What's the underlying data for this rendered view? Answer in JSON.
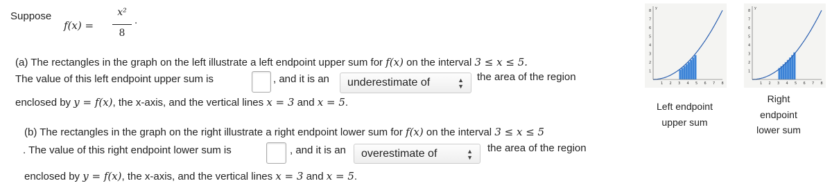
{
  "intro": {
    "label": "Suppose",
    "lhs": "f(x) =",
    "numerator": "x²",
    "denominator": "8",
    "end": "."
  },
  "part_a": {
    "line1": [
      "(a) The rectangles in the graph on the left illustrate a left endpoint upper sum for ",
      "f(x)",
      " on the interval ",
      "3 ≤ x ≤ 5."
    ],
    "line2_start": "The value of this left endpoint upper sum is",
    "line2_mid": ", and it is an",
    "dropdown": "underestimate of",
    "line2_end": "the area of the region",
    "line3": [
      "enclosed by ",
      "y = f(x)",
      ", the x-axis, and the vertical lines ",
      "x = 3",
      " and ",
      "x = 5",
      "."
    ]
  },
  "part_b": {
    "line1": [
      "(b) The rectangles in the graph on the right illustrate a right endpoint lower sum for ",
      "f(x)",
      " on the interval ",
      "3 ≤ x ≤ 5"
    ],
    "line2_start": ". The value of this right endpoint lower sum is",
    "line2_mid": ", and it is an",
    "dropdown": "overestimate of",
    "line2_end": "the area of the region",
    "line3": [
      "enclosed by ",
      "y = f(x)",
      ", the x-axis, and the vertical lines ",
      "x = 3",
      " and ",
      "x = 5",
      "."
    ]
  },
  "graphs": [
    {
      "caption": [
        "Left endpoint",
        "upper sum"
      ],
      "y_label": "y",
      "yticks": [
        "1",
        "2",
        "3",
        "4",
        "5",
        "6",
        "7",
        "8"
      ],
      "xticks": [
        "1",
        "2",
        "3",
        "4",
        "5",
        "6",
        "7",
        "8"
      ]
    },
    {
      "caption": [
        "Right",
        "endpoint",
        "lower sum"
      ],
      "y_label": "y",
      "yticks": [
        "1",
        "2",
        "3",
        "4",
        "5",
        "6",
        "7",
        "8"
      ],
      "xticks": [
        "1",
        "2",
        "3",
        "4",
        "5",
        "6",
        "7",
        "8"
      ]
    }
  ]
}
